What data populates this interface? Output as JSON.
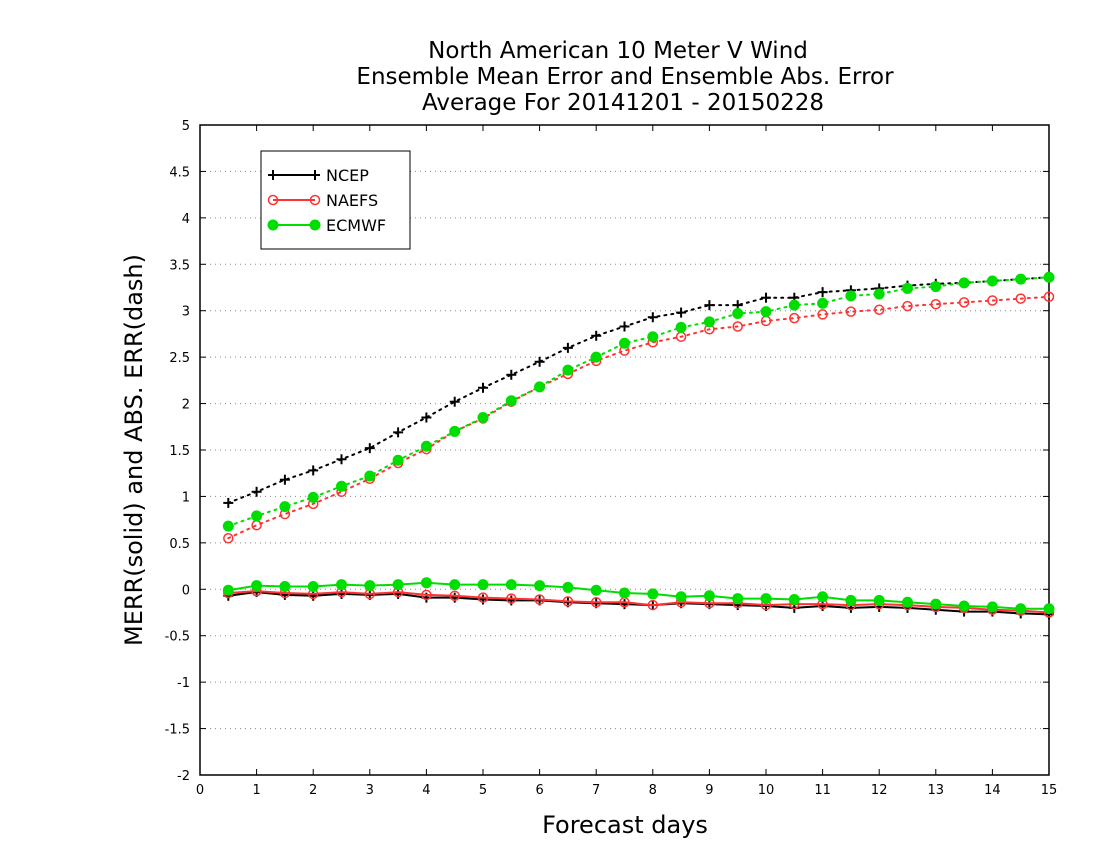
{
  "chart_data": {
    "type": "line",
    "title_lines": [
      "North American 10 Meter V Wind",
      "Ensemble Mean Error and Ensemble Abs. Error",
      "Average For 20141201 - 20150228"
    ],
    "xlabel": "Forecast days",
    "ylabel": "MERR(solid) and ABS. ERR(dash)",
    "xlim": [
      0,
      15
    ],
    "ylim": [
      -2,
      5
    ],
    "xticks": [
      "0",
      "1",
      "2",
      "3",
      "4",
      "5",
      "6",
      "7",
      "8",
      "9",
      "10",
      "11",
      "12",
      "13",
      "14",
      "15"
    ],
    "yticks": [
      "-2",
      "-1.5",
      "-1",
      "-0.5",
      "0",
      "0.5",
      "1",
      "1.5",
      "2",
      "2.5",
      "3",
      "3.5",
      "4",
      "4.5",
      "5"
    ],
    "grid": "horizontal dotted",
    "legend_position": "top-left",
    "x": [
      0.5,
      1,
      1.5,
      2,
      2.5,
      3,
      3.5,
      4,
      4.5,
      5,
      5.5,
      6,
      6.5,
      7,
      7.5,
      8,
      8.5,
      9,
      9.5,
      10,
      10.5,
      11,
      11.5,
      12,
      12.5,
      13,
      13.5,
      14,
      14.5,
      15
    ],
    "series": [
      {
        "name": "NCEP",
        "marker": "plus",
        "color": "#000000",
        "abs_err": [
          0.93,
          1.05,
          1.18,
          1.28,
          1.4,
          1.52,
          1.69,
          1.85,
          2.02,
          2.17,
          2.31,
          2.45,
          2.6,
          2.73,
          2.83,
          2.93,
          2.98,
          3.06,
          3.06,
          3.14,
          3.14,
          3.2,
          3.22,
          3.24,
          3.27,
          3.29,
          3.3,
          3.32,
          3.34,
          3.36
        ],
        "mean_err": [
          -0.07,
          -0.03,
          -0.06,
          -0.07,
          -0.05,
          -0.06,
          -0.05,
          -0.09,
          -0.09,
          -0.11,
          -0.12,
          -0.12,
          -0.14,
          -0.15,
          -0.16,
          -0.17,
          -0.15,
          -0.16,
          -0.17,
          -0.18,
          -0.2,
          -0.18,
          -0.2,
          -0.19,
          -0.2,
          -0.22,
          -0.24,
          -0.24,
          -0.26,
          -0.27
        ]
      },
      {
        "name": "NAEFS",
        "marker": "open-circle",
        "color": "#ff3333",
        "abs_err": [
          0.55,
          0.69,
          0.81,
          0.92,
          1.05,
          1.19,
          1.36,
          1.51,
          1.7,
          1.84,
          2.02,
          2.18,
          2.32,
          2.46,
          2.57,
          2.66,
          2.72,
          2.8,
          2.83,
          2.89,
          2.92,
          2.96,
          2.99,
          3.01,
          3.05,
          3.07,
          3.09,
          3.11,
          3.13,
          3.15
        ],
        "mean_err": [
          -0.04,
          -0.02,
          -0.04,
          -0.05,
          -0.03,
          -0.05,
          -0.03,
          -0.06,
          -0.07,
          -0.09,
          -0.1,
          -0.11,
          -0.13,
          -0.14,
          -0.14,
          -0.17,
          -0.14,
          -0.15,
          -0.15,
          -0.17,
          -0.16,
          -0.16,
          -0.17,
          -0.16,
          -0.17,
          -0.19,
          -0.2,
          -0.22,
          -0.23,
          -0.25
        ]
      },
      {
        "name": "ECMWF",
        "marker": "filled-circle",
        "color": "#00dd00",
        "abs_err": [
          0.68,
          0.79,
          0.89,
          0.99,
          1.11,
          1.22,
          1.39,
          1.54,
          1.7,
          1.85,
          2.03,
          2.18,
          2.36,
          2.5,
          2.65,
          2.72,
          2.82,
          2.88,
          2.97,
          2.99,
          3.06,
          3.08,
          3.16,
          3.18,
          3.24,
          3.26,
          3.3,
          3.32,
          3.34,
          3.36
        ],
        "mean_err": [
          -0.01,
          0.04,
          0.03,
          0.03,
          0.05,
          0.04,
          0.05,
          0.07,
          0.05,
          0.05,
          0.05,
          0.04,
          0.02,
          -0.01,
          -0.04,
          -0.05,
          -0.08,
          -0.07,
          -0.1,
          -0.1,
          -0.11,
          -0.08,
          -0.12,
          -0.12,
          -0.14,
          -0.16,
          -0.18,
          -0.19,
          -0.21,
          -0.21
        ]
      }
    ]
  }
}
